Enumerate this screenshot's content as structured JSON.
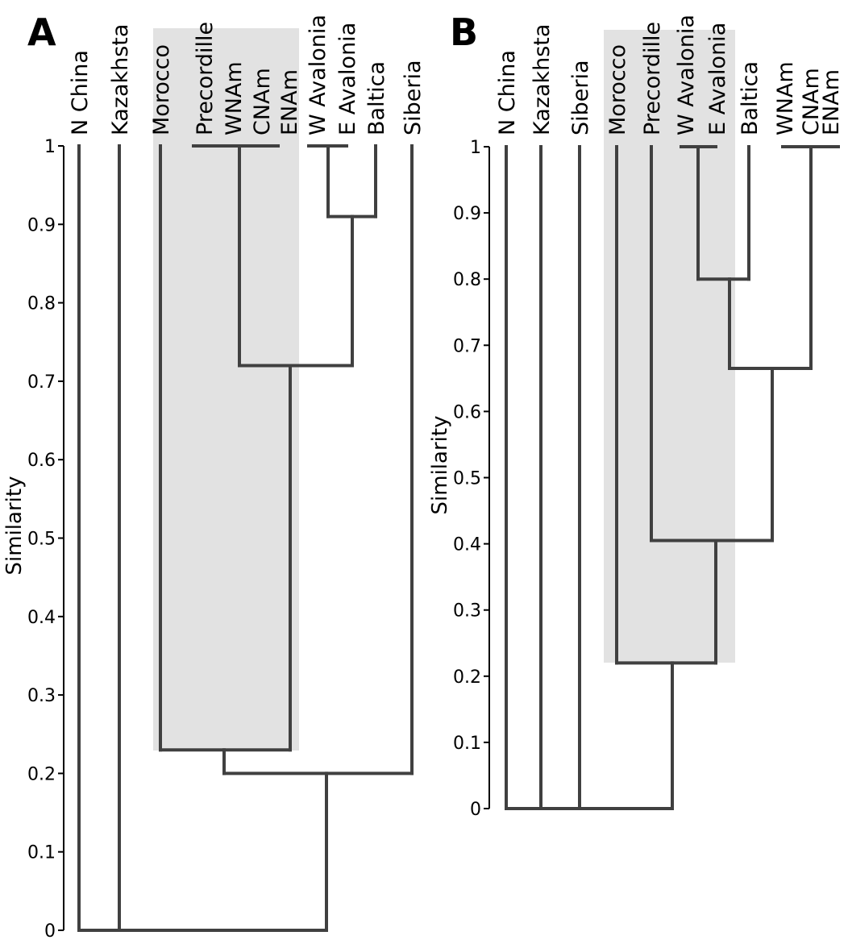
{
  "chart_data": [
    {
      "type": "dendrogram",
      "panel": "A",
      "ylabel": "Similarity",
      "ylim": [
        0,
        1
      ],
      "yticks": [
        "0",
        "0.1",
        "0.2",
        "0.3",
        "0.4",
        "0.5",
        "0.6",
        "0.7",
        "0.8",
        "0.9",
        "1"
      ],
      "leaves": [
        "N China",
        "Kazakhsta",
        "Morocco",
        "Precordille",
        "WNAm",
        "CNAm",
        "ENAm",
        "W Avalonia",
        "E Avalonia",
        "Baltica",
        "Siberia"
      ],
      "merges": [
        {
          "members": [
            "Precordille",
            "WNAm",
            "CNAm",
            "ENAm"
          ],
          "height": 1.0
        },
        {
          "members": [
            "W Avalonia",
            "E Avalonia"
          ],
          "height": 1.0
        },
        {
          "members": [
            "W Avalonia + E Avalonia",
            "Baltica"
          ],
          "height": 0.91
        },
        {
          "members": [
            "Precordille + WNAm + CNAm + ENAm",
            "W Avalonia + E Avalonia + Baltica"
          ],
          "height": 0.72
        },
        {
          "members": [
            "Morocco",
            "Precordille ... Baltica"
          ],
          "height": 0.23
        },
        {
          "members": [
            "Morocco ... Baltica",
            "Siberia"
          ],
          "height": 0.2
        },
        {
          "members": [
            "N China",
            "Kazakhsta",
            "Morocco ... Siberia"
          ],
          "height": 0.0
        }
      ],
      "highlight": {
        "leaves": [
          "Morocco",
          "Precordille",
          "WNAm",
          "CNAm",
          "ENAm"
        ],
        "from_height": 0.23,
        "color": "#e2e2e2"
      }
    },
    {
      "type": "dendrogram",
      "panel": "B",
      "ylabel": "Similarity",
      "ylim": [
        0,
        1
      ],
      "yticks": [
        "0",
        "0.1",
        "0.2",
        "0.3",
        "0.4",
        "0.5",
        "0.6",
        "0.7",
        "0.8",
        "0.9",
        "1"
      ],
      "leaves": [
        "N China",
        "Kazakhsta",
        "Siberia",
        "Morocco",
        "Precordille",
        "W Avalonia",
        "E Avalonia",
        "Baltica",
        "WNAm",
        "CNAm",
        "ENAm"
      ],
      "merges": [
        {
          "members": [
            "W Avalonia",
            "E Avalonia"
          ],
          "height": 1.0
        },
        {
          "members": [
            "WNAm",
            "CNAm",
            "ENAm"
          ],
          "height": 1.0
        },
        {
          "members": [
            "W Avalonia + E Avalonia",
            "Baltica"
          ],
          "height": 0.8
        },
        {
          "members": [
            "W Avalonia + E Avalonia + Baltica",
            "WNAm + CNAm + ENAm"
          ],
          "height": 0.665
        },
        {
          "members": [
            "Precordille",
            "W Avalonia ... ENAm"
          ],
          "height": 0.405
        },
        {
          "members": [
            "Morocco",
            "Precordille ... ENAm"
          ],
          "height": 0.22
        },
        {
          "members": [
            "N China",
            "Kazakhsta",
            "Siberia",
            "Morocco ... ENAm"
          ],
          "height": 0.0
        }
      ],
      "highlight": {
        "leaves": [
          "Morocco",
          "Precordille",
          "W Avalonia",
          "E Avalonia"
        ],
        "from_height": 0.22,
        "color": "#e2e2e2"
      }
    }
  ],
  "panels": [
    {
      "letter": "A",
      "ylabel": "Similarity",
      "ticks": [
        "0",
        "0.1",
        "0.2",
        "0.3",
        "0.4",
        "0.5",
        "0.6",
        "0.7",
        "0.8",
        "0.9",
        "1"
      ],
      "labels": [
        "N China",
        "Kazakhsta",
        "Morocco",
        "Precordille",
        "WNAm",
        "CNAm",
        "ENAm",
        "W Avalonia",
        "E Avalonia",
        "Baltica",
        "Siberia"
      ]
    },
    {
      "letter": "B",
      "ylabel": "Similarity",
      "ticks": [
        "0",
        "0.1",
        "0.2",
        "0.3",
        "0.4",
        "0.5",
        "0.6",
        "0.7",
        "0.8",
        "0.9",
        "1"
      ],
      "labels": [
        "N China",
        "Kazakhsta",
        "Siberia",
        "Morocco",
        "Precordille",
        "W Avalonia",
        "E Avalonia",
        "Baltica",
        "WNAm",
        "CNAm",
        "ENAm"
      ]
    }
  ]
}
